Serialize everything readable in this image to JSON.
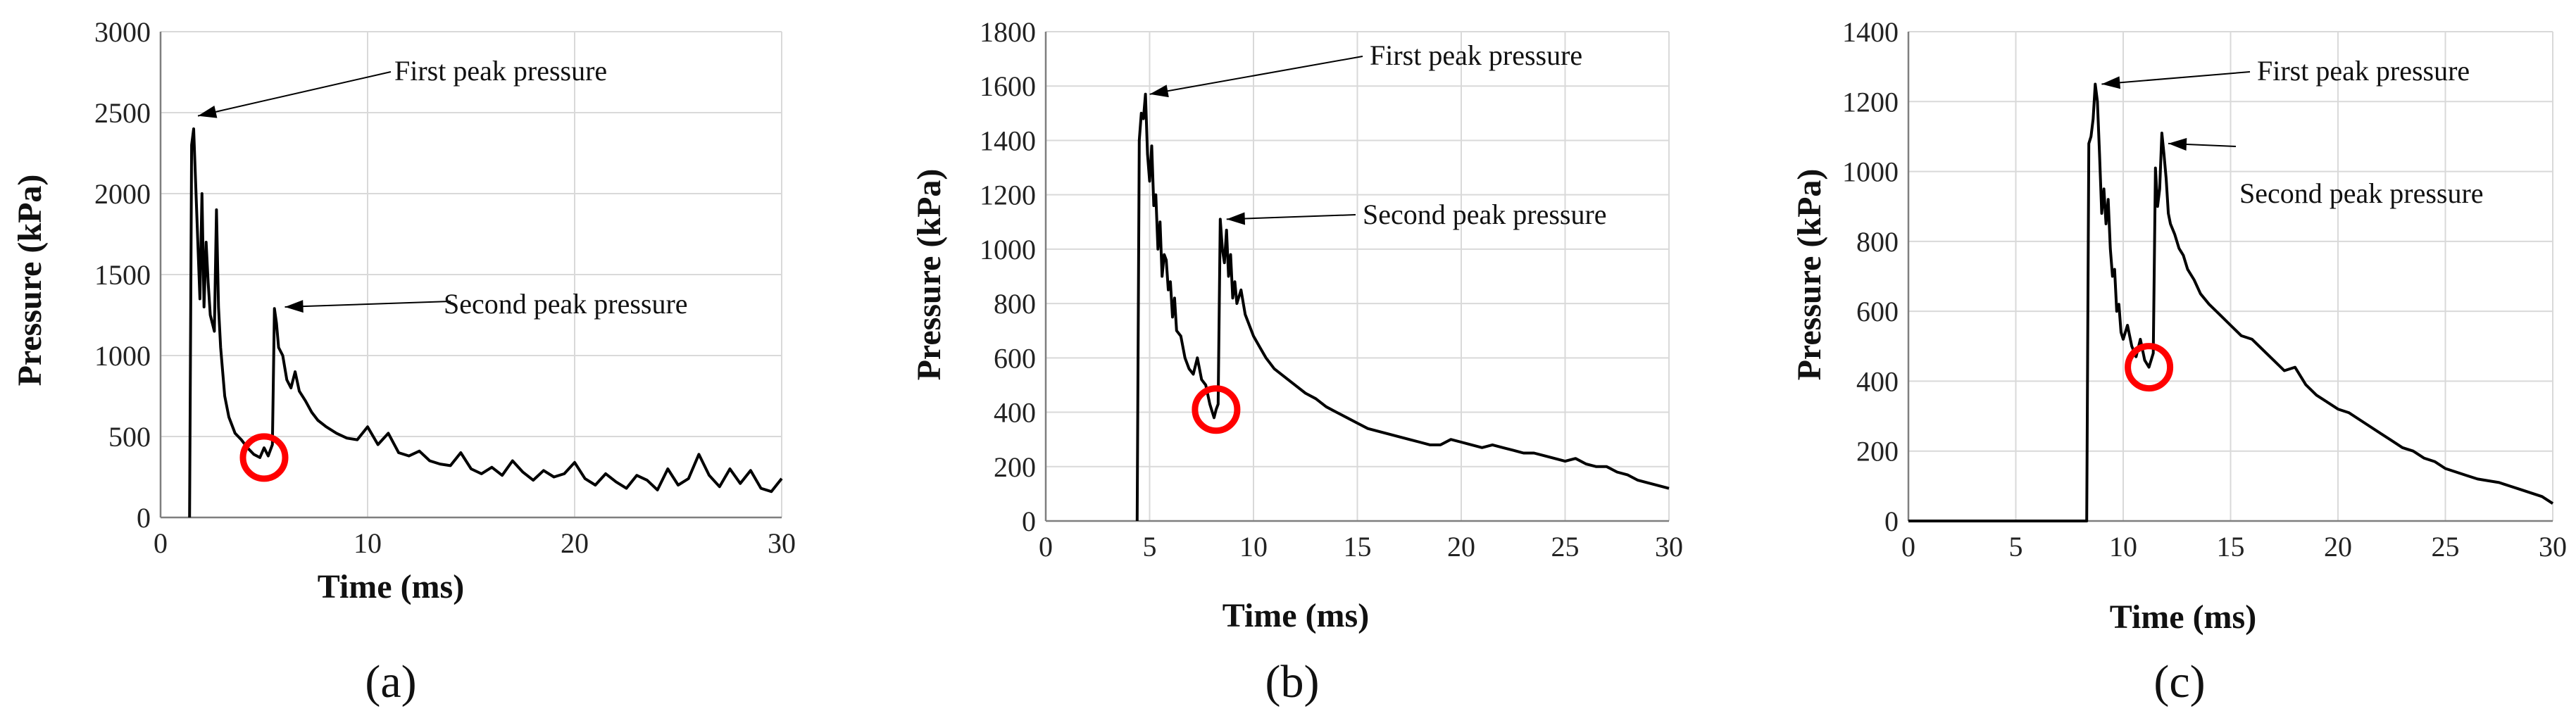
{
  "figure": {
    "panel_labels": [
      "(a)",
      "(b)",
      "(c)"
    ]
  },
  "chart_data": [
    {
      "type": "line",
      "panel": "(a)",
      "xlabel": "Time (ms)",
      "ylabel": "Pressure (kPa)",
      "xlim": [
        0,
        30
      ],
      "ylim": [
        0,
        3000
      ],
      "xticks": [
        0,
        10,
        20,
        30
      ],
      "yticks": [
        0,
        500,
        1000,
        1500,
        2000,
        2500,
        3000
      ],
      "grid": true,
      "series": [
        {
          "name": "Pressure",
          "x": [
            1.4,
            1.5,
            1.6,
            1.8,
            1.9,
            2.0,
            2.1,
            2.2,
            2.3,
            2.4,
            2.6,
            2.7,
            2.8,
            2.9,
            3.0,
            3.1,
            3.3,
            3.6,
            3.9,
            4.2,
            4.5,
            4.8,
            5.0,
            5.2,
            5.4,
            5.5,
            5.6,
            5.7,
            5.9,
            6.1,
            6.3,
            6.5,
            6.7,
            7.0,
            7.3,
            7.6,
            8.0,
            8.5,
            9.0,
            9.5,
            10.0,
            10.5,
            11.0,
            11.5,
            12.0,
            12.5,
            13.0,
            13.5,
            14.0,
            14.5,
            15.0,
            15.5,
            16.0,
            16.5,
            17.0,
            17.5,
            18.0,
            18.5,
            19.0,
            19.5,
            20.0,
            20.5,
            21.0,
            21.5,
            22.0,
            22.5,
            23.0,
            23.5,
            24.0,
            24.5,
            25.0,
            25.5,
            26.0,
            26.5,
            27.0,
            27.5,
            28.0,
            28.5,
            29.0,
            29.5,
            30.0
          ],
          "y": [
            0,
            2300,
            2400,
            1700,
            1350,
            2000,
            1300,
            1700,
            1450,
            1250,
            1150,
            1900,
            1300,
            1050,
            900,
            750,
            620,
            520,
            480,
            430,
            390,
            370,
            430,
            380,
            450,
            1290,
            1200,
            1050,
            1000,
            850,
            800,
            900,
            780,
            720,
            650,
            600,
            560,
            520,
            490,
            480,
            560,
            450,
            520,
            400,
            380,
            410,
            350,
            330,
            320,
            400,
            300,
            270,
            310,
            260,
            350,
            280,
            230,
            290,
            250,
            270,
            340,
            240,
            200,
            270,
            220,
            180,
            260,
            230,
            170,
            300,
            200,
            240,
            390,
            260,
            190,
            300,
            210,
            290,
            180,
            160,
            240
          ]
        }
      ],
      "annotations": [
        {
          "text": "First peak pressure",
          "point": [
            1.6,
            2480
          ]
        },
        {
          "text": "Second peak pressure",
          "point": [
            5.8,
            1300
          ]
        }
      ],
      "highlight_circle": {
        "x": 5.0,
        "y": 370
      }
    },
    {
      "type": "line",
      "panel": "(b)",
      "xlabel": "Time (ms)",
      "ylabel": "Pressure (kPa)",
      "xlim": [
        0,
        30
      ],
      "ylim": [
        0,
        1800
      ],
      "xticks": [
        0,
        5,
        10,
        15,
        20,
        25,
        30
      ],
      "yticks": [
        0,
        200,
        400,
        600,
        800,
        1000,
        1200,
        1400,
        1600,
        1800
      ],
      "grid": true,
      "series": [
        {
          "name": "Pressure",
          "x": [
            4.4,
            4.5,
            4.6,
            4.7,
            4.8,
            4.9,
            5.0,
            5.1,
            5.2,
            5.3,
            5.4,
            5.5,
            5.6,
            5.7,
            5.8,
            5.9,
            6.0,
            6.1,
            6.2,
            6.3,
            6.5,
            6.7,
            6.9,
            7.1,
            7.3,
            7.5,
            7.7,
            7.9,
            8.1,
            8.2,
            8.3,
            8.4,
            8.5,
            8.6,
            8.7,
            8.8,
            8.9,
            9.0,
            9.1,
            9.2,
            9.4,
            9.6,
            9.8,
            10.0,
            10.3,
            10.6,
            11.0,
            11.5,
            12.0,
            12.5,
            13.0,
            13.5,
            14.0,
            14.5,
            15.0,
            15.5,
            16.0,
            16.5,
            17.0,
            17.5,
            18.0,
            18.5,
            19.0,
            19.5,
            20.0,
            20.5,
            21.0,
            21.5,
            22.0,
            22.5,
            23.0,
            23.5,
            24.0,
            24.5,
            25.0,
            25.5,
            26.0,
            26.5,
            27.0,
            27.5,
            28.0,
            28.5,
            29.0,
            29.5,
            30.0
          ],
          "y": [
            0,
            1400,
            1500,
            1480,
            1570,
            1350,
            1250,
            1380,
            1160,
            1200,
            1000,
            1100,
            900,
            980,
            960,
            850,
            880,
            750,
            820,
            700,
            680,
            600,
            560,
            540,
            600,
            520,
            500,
            430,
            380,
            410,
            430,
            1110,
            1000,
            950,
            1070,
            900,
            980,
            820,
            880,
            800,
            850,
            760,
            720,
            680,
            640,
            600,
            560,
            530,
            500,
            470,
            450,
            420,
            400,
            380,
            360,
            340,
            330,
            320,
            310,
            300,
            290,
            280,
            280,
            300,
            290,
            280,
            270,
            280,
            270,
            260,
            250,
            250,
            240,
            230,
            220,
            230,
            210,
            200,
            200,
            180,
            170,
            150,
            140,
            130,
            120
          ]
        }
      ],
      "annotations": [
        {
          "text": "First peak pressure",
          "point": [
            4.8,
            1570
          ]
        },
        {
          "text": "Second peak pressure",
          "point": [
            8.5,
            1110
          ]
        }
      ],
      "highlight_circle": {
        "x": 8.2,
        "y": 410
      }
    },
    {
      "type": "line",
      "panel": "(c)",
      "xlabel": "Time (ms)",
      "ylabel": "Pressure (kPa)",
      "xlim": [
        0,
        30
      ],
      "ylim": [
        0,
        1400
      ],
      "xticks": [
        0,
        5,
        10,
        15,
        20,
        25,
        30
      ],
      "yticks": [
        0,
        200,
        400,
        600,
        800,
        1000,
        1200,
        1400
      ],
      "grid": true,
      "series": [
        {
          "name": "Pressure",
          "x": [
            0,
            2,
            4,
            6,
            8,
            8.3,
            8.4,
            8.5,
            8.6,
            8.7,
            8.8,
            8.9,
            9.0,
            9.1,
            9.2,
            9.3,
            9.4,
            9.5,
            9.6,
            9.7,
            9.8,
            9.9,
            10.0,
            10.2,
            10.4,
            10.6,
            10.8,
            11.0,
            11.2,
            11.4,
            11.5,
            11.6,
            11.7,
            11.8,
            11.9,
            12.0,
            12.1,
            12.2,
            12.4,
            12.6,
            12.8,
            13.0,
            13.3,
            13.6,
            14.0,
            14.5,
            15.0,
            15.5,
            16.0,
            16.5,
            17.0,
            17.5,
            18.0,
            18.5,
            19.0,
            19.5,
            20.0,
            20.5,
            21.0,
            21.5,
            22.0,
            22.5,
            23.0,
            23.5,
            24.0,
            24.5,
            25.0,
            25.5,
            26.0,
            26.5,
            27.0,
            27.5,
            28.0,
            28.5,
            29.0,
            29.5,
            30.0
          ],
          "y": [
            0,
            0,
            0,
            0,
            0,
            0,
            1080,
            1100,
            1150,
            1250,
            1200,
            1050,
            880,
            950,
            850,
            920,
            780,
            700,
            720,
            600,
            620,
            540,
            520,
            560,
            500,
            470,
            520,
            460,
            440,
            480,
            1010,
            900,
            950,
            1110,
            1050,
            980,
            880,
            850,
            820,
            780,
            760,
            720,
            690,
            650,
            620,
            590,
            560,
            530,
            520,
            490,
            460,
            430,
            440,
            390,
            360,
            340,
            320,
            310,
            290,
            270,
            250,
            230,
            210,
            200,
            180,
            170,
            150,
            140,
            130,
            120,
            115,
            110,
            100,
            90,
            80,
            70,
            50
          ]
        }
      ],
      "annotations": [
        {
          "text": "First peak pressure",
          "point": [
            8.8,
            1250
          ]
        },
        {
          "text": "Second peak pressure",
          "point": [
            11.9,
            1080
          ]
        }
      ],
      "highlight_circle": {
        "x": 11.2,
        "y": 440
      }
    }
  ]
}
